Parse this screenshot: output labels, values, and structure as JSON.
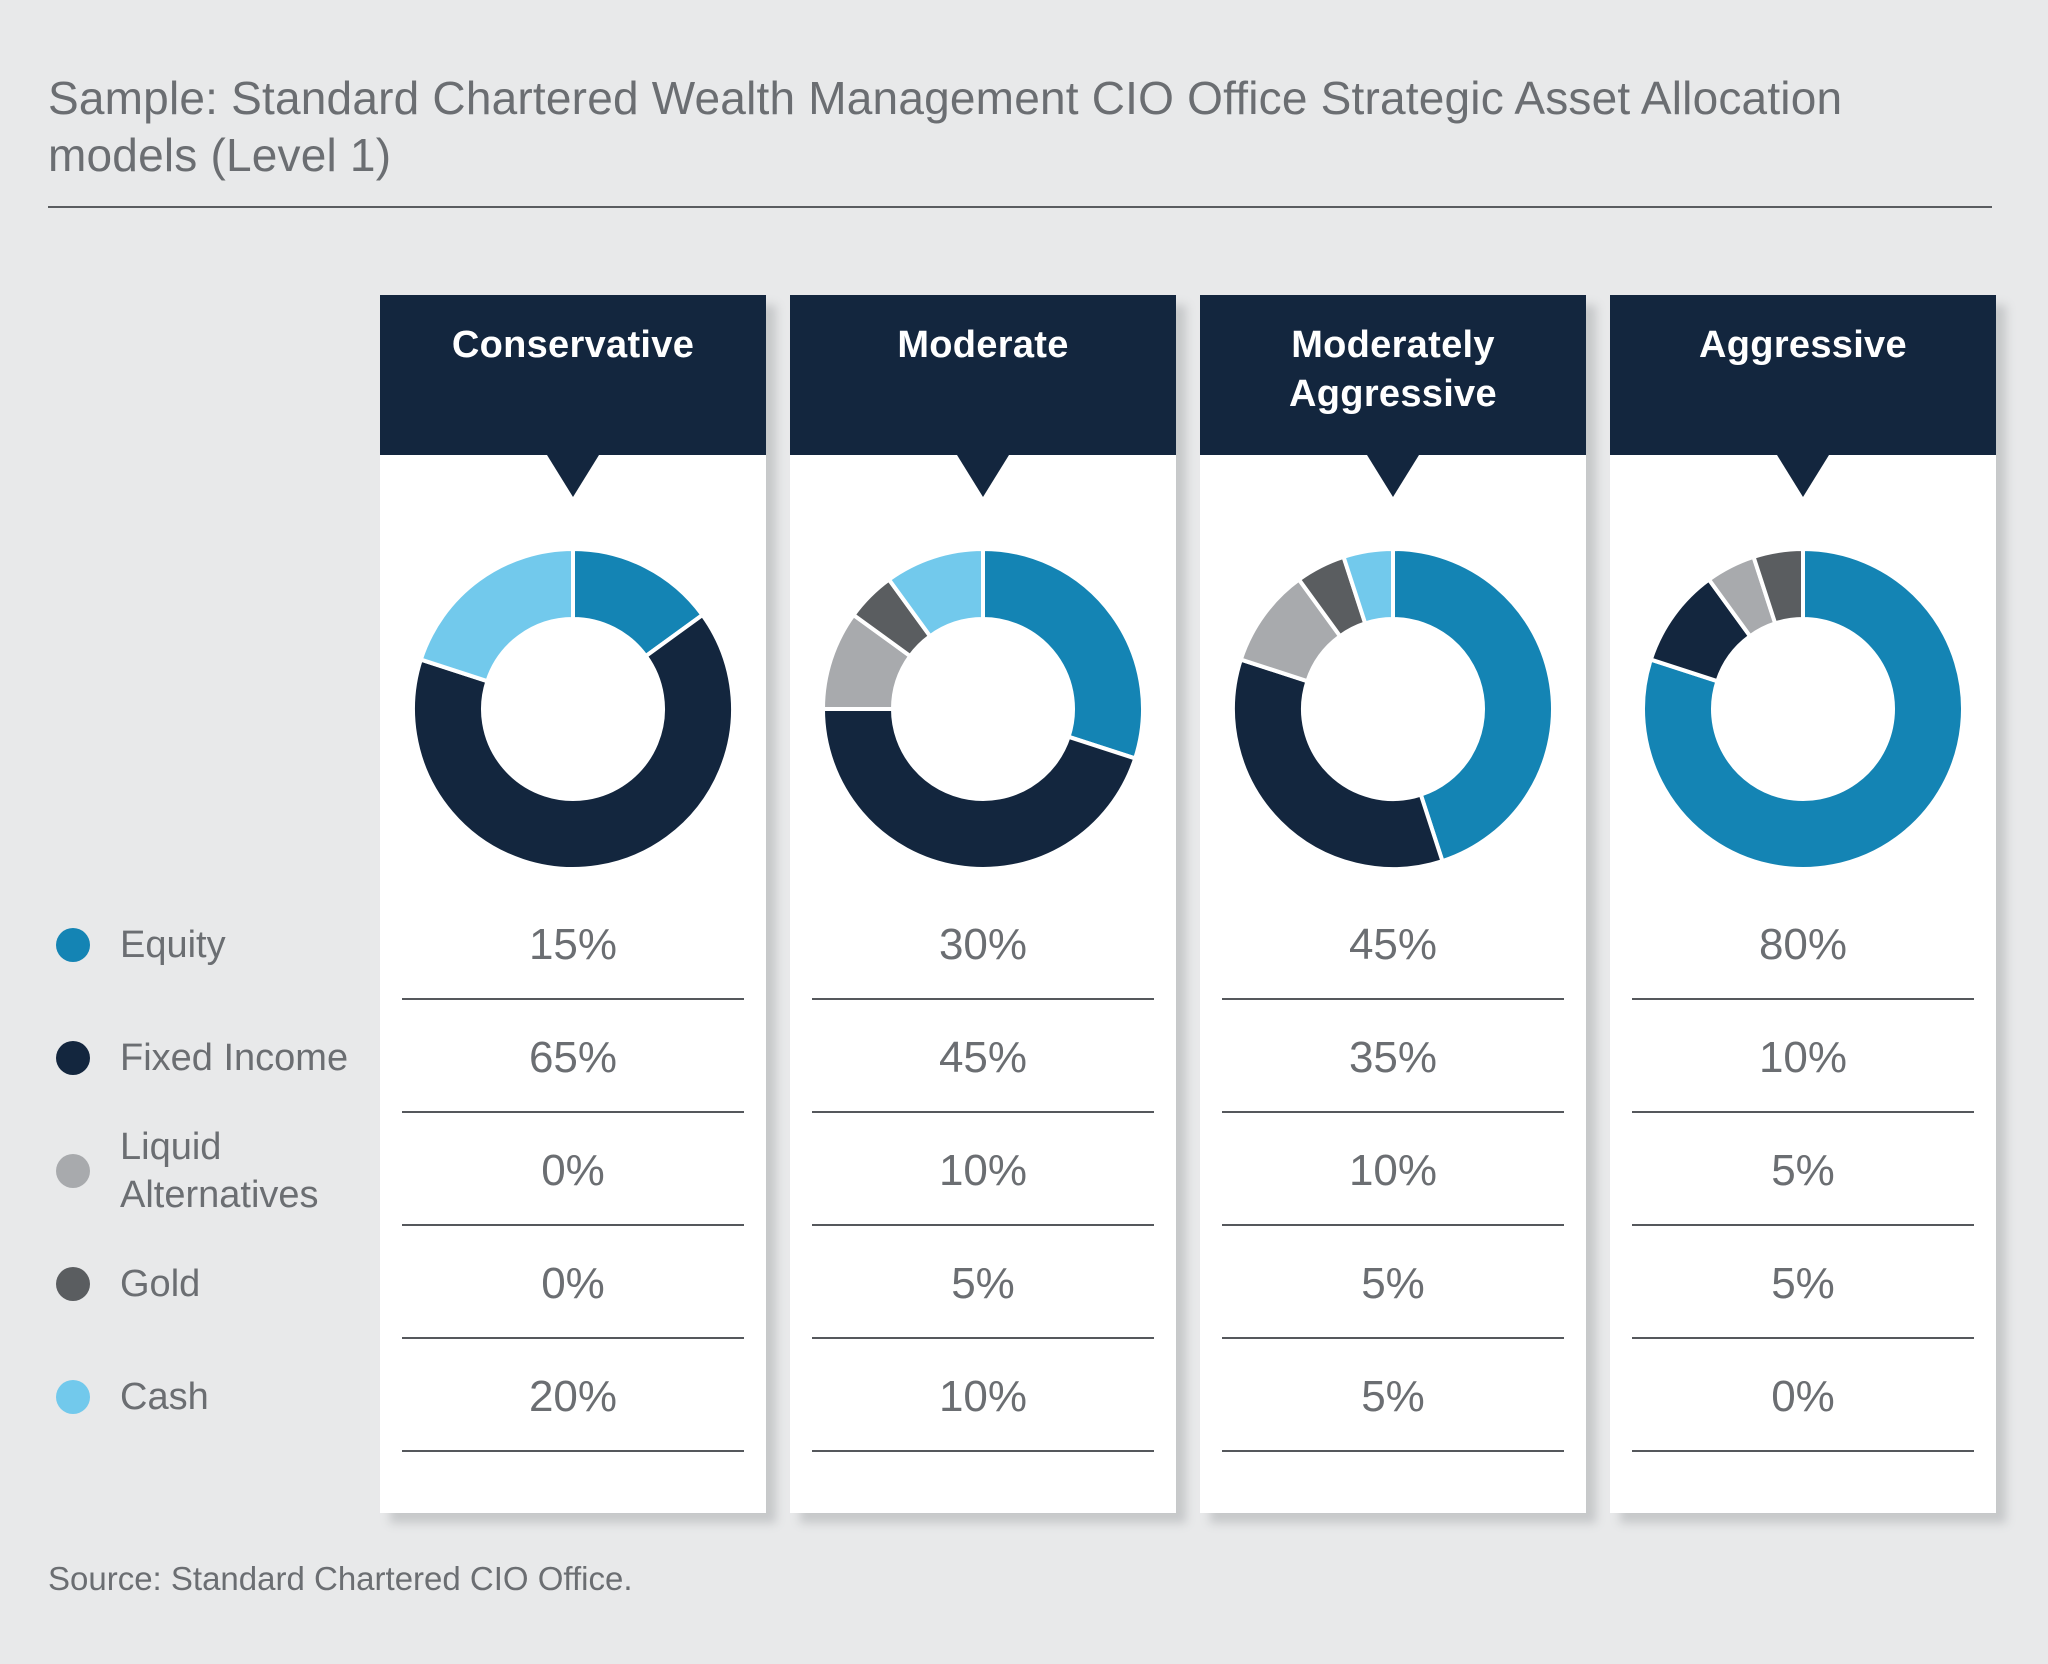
{
  "page": {
    "title": "Sample: Standard Chartered Wealth Management CIO Office Strategic Asset Allocation models (Level 1)",
    "source": "Source: Standard Chartered CIO Office."
  },
  "legend": {
    "items": [
      {
        "label": "Equity",
        "color": "#1484b4"
      },
      {
        "label": "Fixed Income",
        "color": "#13263e"
      },
      {
        "label": "Liquid Alternatives",
        "color": "#a8aaad"
      },
      {
        "label": "Gold",
        "color": "#5a5d60"
      },
      {
        "label": "Cash",
        "color": "#72c9ec"
      }
    ]
  },
  "columns": [
    {
      "title": "Conservative",
      "values": [
        "15%",
        "65%",
        "0%",
        "0%",
        "20%"
      ]
    },
    {
      "title": "Moderate",
      "values": [
        "30%",
        "45%",
        "10%",
        "5%",
        "10%"
      ]
    },
    {
      "title": "Moderately Aggressive",
      "values": [
        "45%",
        "35%",
        "10%",
        "5%",
        "5%"
      ]
    },
    {
      "title": "Aggressive",
      "values": [
        "80%",
        "10%",
        "5%",
        "5%",
        "0%"
      ]
    }
  ],
  "chart_data": {
    "type": "pie",
    "variant": "donut",
    "title": "Sample: Standard Chartered Wealth Management CIO Office Strategic Asset Allocation models (Level 1)",
    "unit": "%",
    "legend_position": "left",
    "categories": [
      "Equity",
      "Fixed Income",
      "Liquid Alternatives",
      "Gold",
      "Cash"
    ],
    "colors": [
      "#1484b4",
      "#13263e",
      "#a8aaad",
      "#5a5d60",
      "#72c9ec"
    ],
    "series": [
      {
        "name": "Conservative",
        "values": [
          15,
          65,
          0,
          0,
          20
        ]
      },
      {
        "name": "Moderate",
        "values": [
          30,
          45,
          10,
          5,
          10
        ]
      },
      {
        "name": "Moderately Aggressive",
        "values": [
          45,
          35,
          10,
          5,
          5
        ]
      },
      {
        "name": "Aggressive",
        "values": [
          80,
          10,
          5,
          5,
          0
        ]
      }
    ]
  }
}
